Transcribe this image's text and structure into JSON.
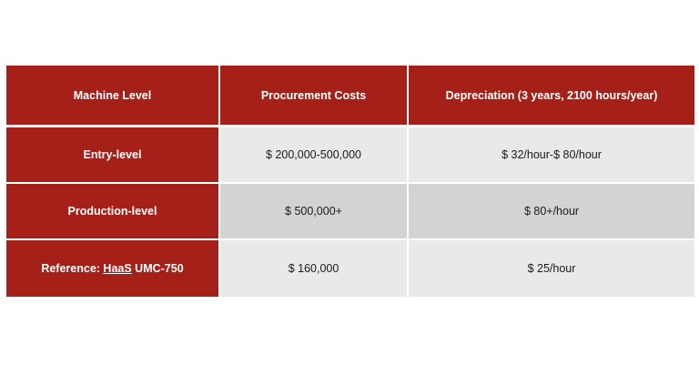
{
  "table": {
    "headers": [
      "Machine Level",
      "Procurement Costs",
      "Depreciation (3 years, 2100 hours/year)"
    ],
    "rows": [
      {
        "level": "Entry-level",
        "procurement": "$ 200,000-500,000",
        "depreciation": "$ 32/hour-$ 80/hour"
      },
      {
        "level": "Production-level",
        "procurement": "$ 500,000+",
        "depreciation": "$ 80+/hour"
      },
      {
        "level_prefix": "Reference: ",
        "level_brand": "HaaS",
        "level_suffix": " UMC-750",
        "procurement": "$ 160,000",
        "depreciation": "$ 25/hour"
      }
    ]
  },
  "colors": {
    "header_fill": "#a52019",
    "row_light": "#e9e9e9",
    "row_dark": "#d3d3d3",
    "header_text": "#ffffff"
  }
}
